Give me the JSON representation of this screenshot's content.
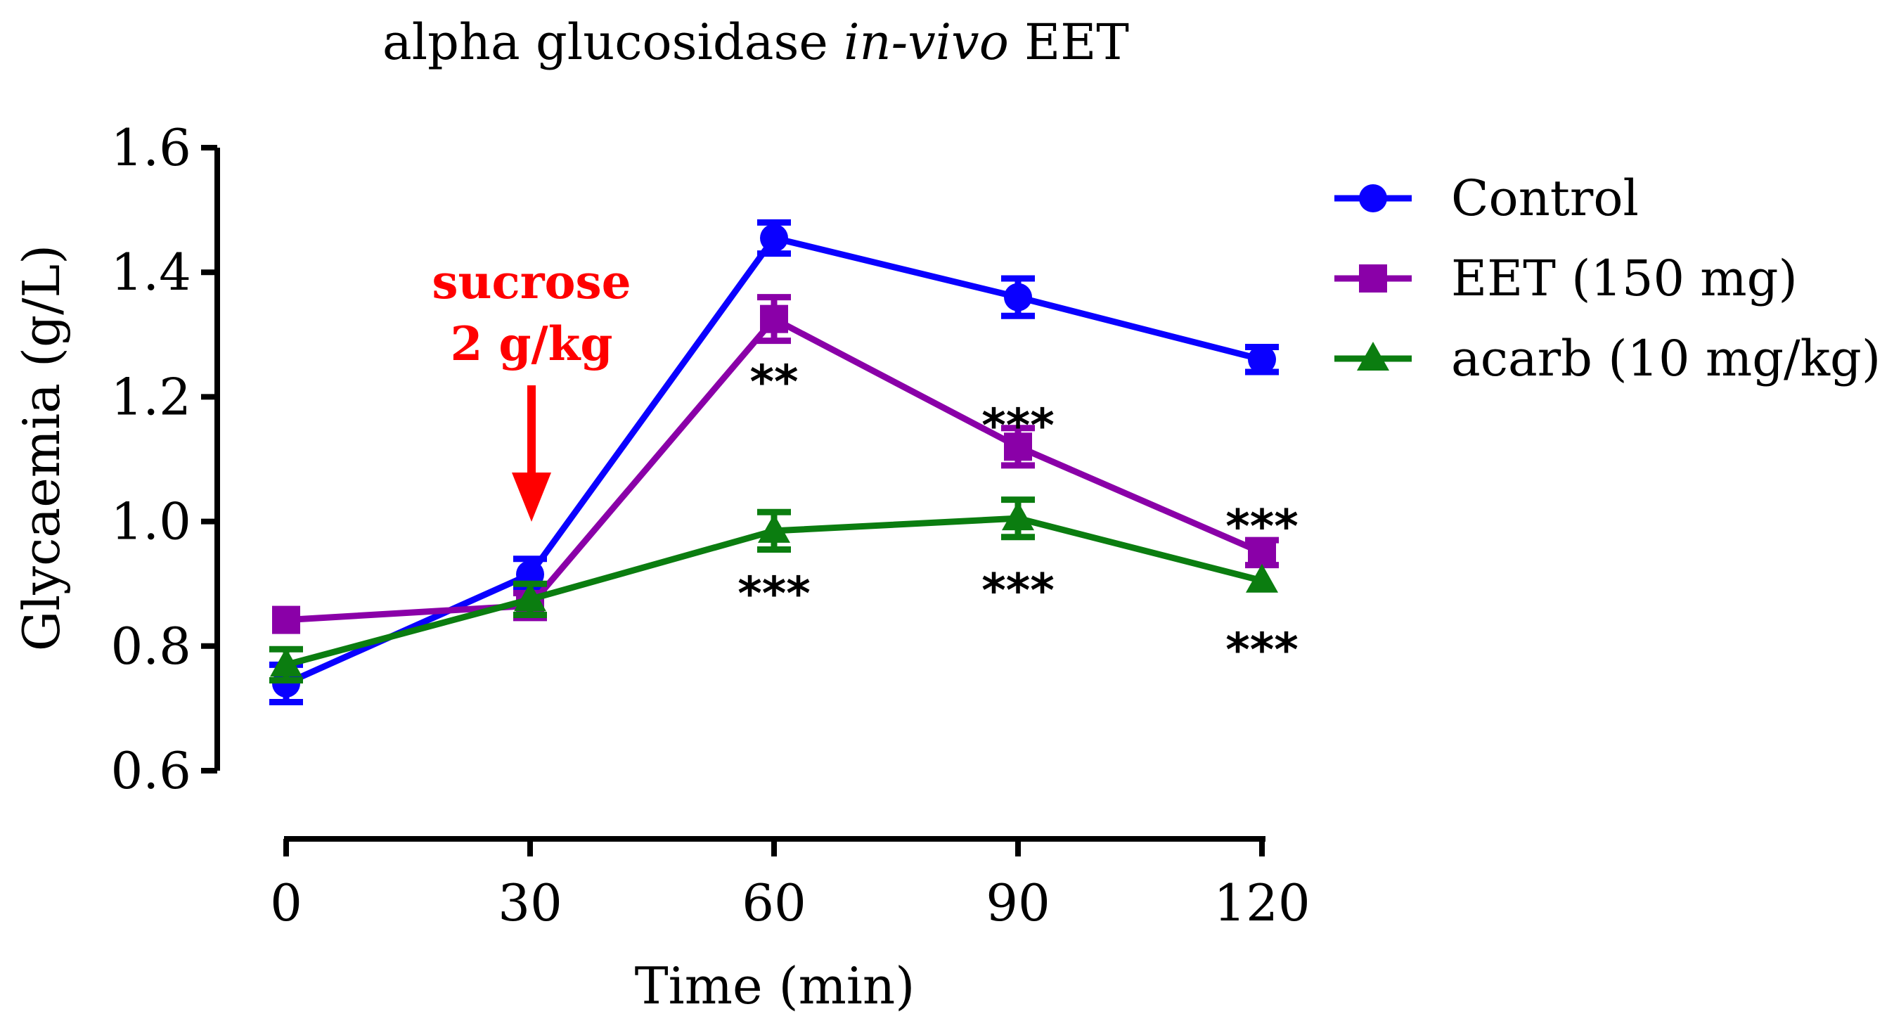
{
  "chart_data": {
    "type": "line",
    "title_prefix": "alpha glucosidase ",
    "title_italic": "in-vivo",
    "title_suffix": " EET",
    "xlabel": "Time (min)",
    "ylabel": "Glycaemia (g/L)",
    "xlim": [
      0,
      120
    ],
    "ylim": [
      0.6,
      1.6
    ],
    "x_ticks": [
      "0",
      "30",
      "60",
      "90",
      "120"
    ],
    "y_ticks": [
      "0.6",
      "0.8",
      "1.0",
      "1.2",
      "1.4",
      "1.6"
    ],
    "x": [
      0,
      30,
      60,
      90,
      120
    ],
    "grid": false,
    "legend_position": "top-right",
    "series": [
      {
        "name": "Control",
        "marker": "circle",
        "color": "#0a00ff",
        "values": [
          0.74,
          0.915,
          1.455,
          1.36,
          1.26
        ],
        "errors": [
          0.03,
          0.025,
          0.025,
          0.03,
          0.02
        ]
      },
      {
        "name": "EET (150 mg)",
        "marker": "square",
        "color": "#8a00a8",
        "values": [
          0.842,
          0.865,
          1.325,
          1.12,
          0.95
        ],
        "errors": [
          0.0,
          0.02,
          0.035,
          0.03,
          0.02
        ]
      },
      {
        "name": "acarb (10 mg/kg)",
        "marker": "triangle",
        "color": "#0b7d10",
        "values": [
          0.77,
          0.875,
          0.985,
          1.005,
          0.905
        ],
        "errors": [
          0.025,
          0.025,
          0.03,
          0.03,
          0.0
        ]
      }
    ],
    "annotation": {
      "line1": "sucrose",
      "line2": "2 g/kg",
      "color": "#ff0000",
      "x": 30
    },
    "significance": [
      {
        "x": 60,
        "y": 1.23,
        "label": "**"
      },
      {
        "x": 90,
        "y": 1.16,
        "label": "***"
      },
      {
        "x": 120,
        "y": 0.998,
        "label": "***"
      },
      {
        "x": 60,
        "y": 0.89,
        "label": "***"
      },
      {
        "x": 90,
        "y": 0.895,
        "label": "***"
      },
      {
        "x": 120,
        "y": 0.8,
        "label": "***"
      }
    ]
  }
}
